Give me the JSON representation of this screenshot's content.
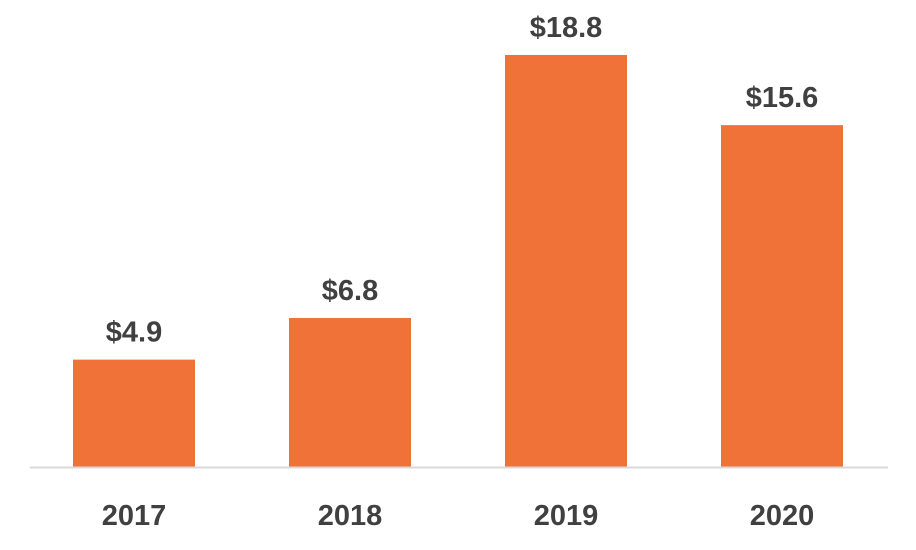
{
  "chart_data": {
    "type": "bar",
    "categories": [
      "2017",
      "2018",
      "2019",
      "2020"
    ],
    "values": [
      4.9,
      6.8,
      18.8,
      15.6
    ],
    "data_labels": [
      "$4.9",
      "$6.8",
      "$18.8",
      "$15.6"
    ],
    "title": "",
    "xlabel": "",
    "ylabel": "",
    "ylim": [
      0,
      18.8
    ],
    "grid": false,
    "legend": "none",
    "bar_color": "#F07238",
    "axis_color": "#D9D9D9",
    "text_color": "#404040"
  }
}
